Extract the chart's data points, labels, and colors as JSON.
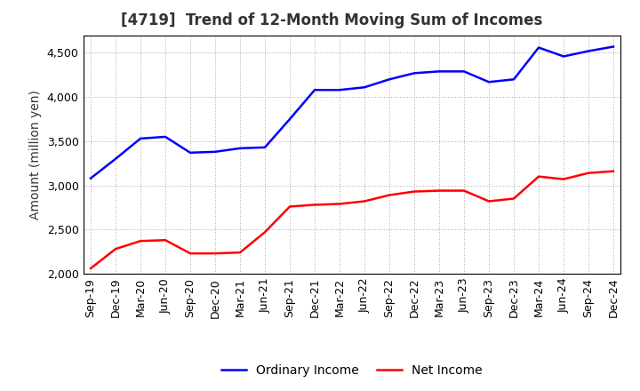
{
  "title": "[4719]  Trend of 12-Month Moving Sum of Incomes",
  "ylabel": "Amount (million yen)",
  "ylim": [
    2000,
    4700
  ],
  "yticks": [
    2000,
    2500,
    3000,
    3500,
    4000,
    4500
  ],
  "x_labels": [
    "Sep-19",
    "Dec-19",
    "Mar-20",
    "Jun-20",
    "Sep-20",
    "Dec-20",
    "Mar-21",
    "Jun-21",
    "Sep-21",
    "Dec-21",
    "Mar-22",
    "Jun-22",
    "Sep-22",
    "Dec-22",
    "Mar-23",
    "Jun-23",
    "Sep-23",
    "Dec-23",
    "Mar-24",
    "Jun-24",
    "Sep-24",
    "Dec-24"
  ],
  "ordinary_income": [
    3080,
    3300,
    3530,
    3550,
    3370,
    3380,
    3420,
    3430,
    3750,
    4080,
    4080,
    4110,
    4200,
    4270,
    4290,
    4290,
    4170,
    4200,
    4560,
    4460,
    4520,
    4570
  ],
  "net_income": [
    2060,
    2280,
    2370,
    2380,
    2230,
    2230,
    2240,
    2470,
    2760,
    2780,
    2790,
    2820,
    2890,
    2930,
    2940,
    2940,
    2820,
    2850,
    3100,
    3070,
    3140,
    3160
  ],
  "ordinary_color": "#0000FF",
  "net_color": "#FF0000",
  "bg_color": "#FFFFFF",
  "plot_bg_color": "#FFFFFF",
  "grid_color": "#AAAAAA",
  "title_fontsize": 12,
  "title_color": "#333333",
  "axis_label_fontsize": 10,
  "tick_fontsize": 9,
  "legend_fontsize": 10
}
